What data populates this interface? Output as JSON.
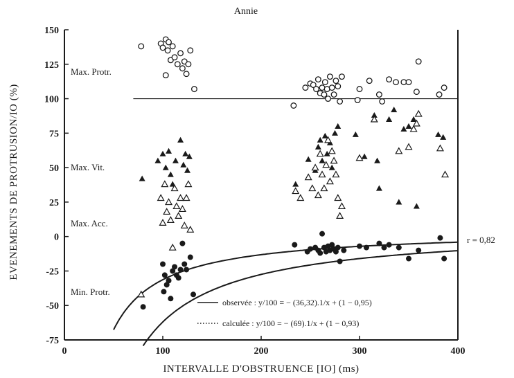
{
  "chart_data": {
    "type": "scatter",
    "title": "Annie",
    "xlabel": "INTERVALLE D'OBSTRUENCE [IO] (ms)",
    "ylabel": "EVENEMENTS DE PROTRUSION/IO (%)",
    "xlim": [
      0,
      400
    ],
    "ylim": [
      -75,
      150
    ],
    "x_ticks": [
      "0",
      "100",
      "200",
      "300",
      "400"
    ],
    "y_ticks": [
      "150",
      "125",
      "100",
      "75",
      "50",
      "25",
      "0",
      "-25",
      "-50",
      "-75"
    ],
    "grid": false,
    "annotations": {
      "max_protr": "Max. Protr.",
      "max_vit": "Max. Vit.",
      "max_acc": "Max. Acc.",
      "min_protr": "Min. Protr.",
      "r_value": "r = 0,82"
    },
    "legend": {
      "placement": "bottom-right",
      "observed": "observée : y/100 = − (36,32).1/x + (1 − 0,95)",
      "computed": "calculée : y/100 = − (69).1/x + (1 − 0,93)"
    },
    "reference_line": {
      "y": 100,
      "x_from": 70,
      "x_to": 400
    },
    "curves": [
      {
        "name": "observée",
        "coef": 36.32,
        "offset": 0.95,
        "x_from": 50,
        "x_to": 400
      },
      {
        "name": "calculée",
        "coef": 69,
        "offset": 0.93,
        "x_from": 80,
        "x_to": 400
      }
    ],
    "series": [
      {
        "name": "Max. Protr.",
        "marker": "open-circle",
        "points": [
          [
            78,
            138
          ],
          [
            98,
            140
          ],
          [
            100,
            137
          ],
          [
            103,
            143
          ],
          [
            105,
            135
          ],
          [
            106,
            141
          ],
          [
            108,
            128
          ],
          [
            110,
            138
          ],
          [
            103,
            117
          ],
          [
            112,
            130
          ],
          [
            115,
            125
          ],
          [
            118,
            133
          ],
          [
            120,
            122
          ],
          [
            122,
            127
          ],
          [
            124,
            118
          ],
          [
            126,
            125
          ],
          [
            128,
            135
          ],
          [
            132,
            107
          ],
          [
            233,
            95
          ],
          [
            245,
            108
          ],
          [
            250,
            111
          ],
          [
            253,
            110
          ],
          [
            256,
            107
          ],
          [
            258,
            114
          ],
          [
            260,
            104
          ],
          [
            262,
            108
          ],
          [
            264,
            103
          ],
          [
            265,
            112
          ],
          [
            267,
            107
          ],
          [
            268,
            100
          ],
          [
            270,
            116
          ],
          [
            272,
            108
          ],
          [
            274,
            103
          ],
          [
            276,
            113
          ],
          [
            278,
            109
          ],
          [
            280,
            98
          ],
          [
            282,
            116
          ],
          [
            298,
            99
          ],
          [
            300,
            107
          ],
          [
            310,
            113
          ],
          [
            320,
            103
          ],
          [
            323,
            98
          ],
          [
            330,
            114
          ],
          [
            337,
            112
          ],
          [
            345,
            112
          ],
          [
            350,
            112
          ],
          [
            358,
            105
          ],
          [
            360,
            127
          ],
          [
            381,
            103
          ],
          [
            386,
            108
          ]
        ]
      },
      {
        "name": "Max. Vit.",
        "marker": "filled-triangle",
        "points": [
          [
            79,
            42
          ],
          [
            95,
            55
          ],
          [
            100,
            60
          ],
          [
            103,
            50
          ],
          [
            106,
            62
          ],
          [
            108,
            45
          ],
          [
            110,
            38
          ],
          [
            113,
            55
          ],
          [
            118,
            70
          ],
          [
            121,
            52
          ],
          [
            123,
            60
          ],
          [
            125,
            48
          ],
          [
            127,
            58
          ],
          [
            235,
            38
          ],
          [
            248,
            56
          ],
          [
            255,
            48
          ],
          [
            258,
            65
          ],
          [
            260,
            70
          ],
          [
            262,
            55
          ],
          [
            265,
            73
          ],
          [
            267,
            60
          ],
          [
            270,
            68
          ],
          [
            272,
            50
          ],
          [
            275,
            75
          ],
          [
            278,
            80
          ],
          [
            296,
            74
          ],
          [
            305,
            58
          ],
          [
            315,
            88
          ],
          [
            318,
            55
          ],
          [
            320,
            35
          ],
          [
            330,
            85
          ],
          [
            335,
            92
          ],
          [
            340,
            25
          ],
          [
            345,
            78
          ],
          [
            350,
            80
          ],
          [
            355,
            85
          ],
          [
            358,
            22
          ],
          [
            380,
            74
          ],
          [
            385,
            72
          ]
        ]
      },
      {
        "name": "Max. Acc.",
        "marker": "open-triangle",
        "points": [
          [
            78,
            -42
          ],
          [
            98,
            28
          ],
          [
            100,
            10
          ],
          [
            102,
            38
          ],
          [
            104,
            18
          ],
          [
            106,
            25
          ],
          [
            108,
            12
          ],
          [
            110,
            -8
          ],
          [
            112,
            35
          ],
          [
            114,
            22
          ],
          [
            116,
            15
          ],
          [
            118,
            28
          ],
          [
            120,
            20
          ],
          [
            122,
            8
          ],
          [
            124,
            28
          ],
          [
            126,
            38
          ],
          [
            128,
            5
          ],
          [
            235,
            33
          ],
          [
            240,
            28
          ],
          [
            248,
            43
          ],
          [
            252,
            35
          ],
          [
            255,
            50
          ],
          [
            258,
            30
          ],
          [
            260,
            60
          ],
          [
            262,
            45
          ],
          [
            264,
            35
          ],
          [
            266,
            52
          ],
          [
            268,
            70
          ],
          [
            270,
            40
          ],
          [
            272,
            62
          ],
          [
            274,
            55
          ],
          [
            276,
            45
          ],
          [
            278,
            28
          ],
          [
            280,
            15
          ],
          [
            282,
            22
          ],
          [
            300,
            57
          ],
          [
            315,
            85
          ],
          [
            340,
            62
          ],
          [
            350,
            65
          ],
          [
            355,
            78
          ],
          [
            358,
            82
          ],
          [
            360,
            89
          ],
          [
            382,
            64
          ],
          [
            387,
            45
          ]
        ]
      },
      {
        "name": "Min. Protr.",
        "marker": "filled-circle",
        "points": [
          [
            80,
            -51
          ],
          [
            100,
            -20
          ],
          [
            102,
            -28
          ],
          [
            104,
            -35
          ],
          [
            106,
            -32
          ],
          [
            108,
            -45
          ],
          [
            110,
            -25
          ],
          [
            112,
            -22
          ],
          [
            114,
            -28
          ],
          [
            116,
            -30
          ],
          [
            118,
            -24
          ],
          [
            120,
            -5
          ],
          [
            122,
            -20
          ],
          [
            124,
            -24
          ],
          [
            128,
            -15
          ],
          [
            131,
            -42
          ],
          [
            101,
            -40
          ],
          [
            234,
            -6
          ],
          [
            247,
            -11
          ],
          [
            250,
            -9
          ],
          [
            255,
            -8
          ],
          [
            258,
            -10
          ],
          [
            260,
            -12
          ],
          [
            262,
            2
          ],
          [
            264,
            -8
          ],
          [
            266,
            -11
          ],
          [
            268,
            -7
          ],
          [
            270,
            -10
          ],
          [
            272,
            -6
          ],
          [
            274,
            -9
          ],
          [
            276,
            -11
          ],
          [
            278,
            -8
          ],
          [
            280,
            -18
          ],
          [
            284,
            -10
          ],
          [
            300,
            -7
          ],
          [
            307,
            -8
          ],
          [
            320,
            -5
          ],
          [
            325,
            -8
          ],
          [
            330,
            -6
          ],
          [
            340,
            -8
          ],
          [
            350,
            -16
          ],
          [
            360,
            -10
          ],
          [
            382,
            -1
          ],
          [
            386,
            -16
          ]
        ]
      }
    ]
  }
}
